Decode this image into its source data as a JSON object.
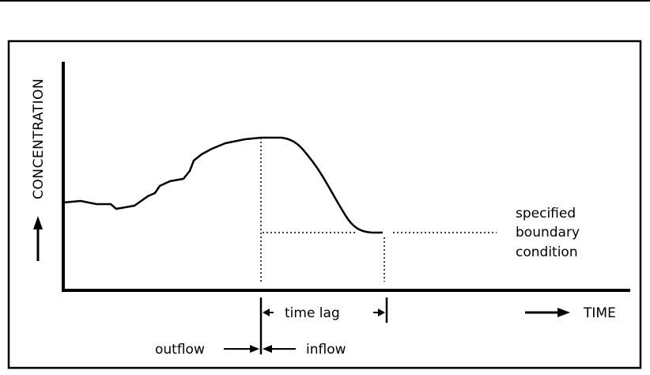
{
  "figure": {
    "y_axis_label": "CONCENTRATION",
    "x_axis_label": "TIME",
    "time_lag_label": "time lag",
    "outflow_label": "outflow",
    "inflow_label": "inflow",
    "boundary_label_line1": "specified",
    "boundary_label_line2": "boundary",
    "boundary_label_line3": "condition"
  }
}
